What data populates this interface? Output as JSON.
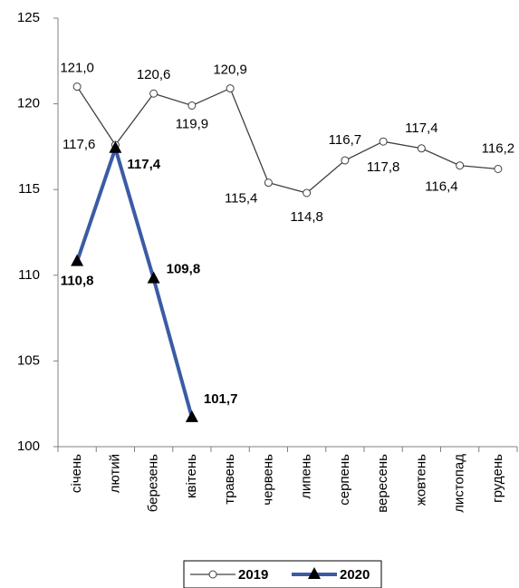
{
  "chart_data": {
    "type": "line",
    "categories": [
      "січень",
      "лютий",
      "березень",
      "квітень",
      "травень",
      "червень",
      "липень",
      "серпень",
      "вересень",
      "жовтень",
      "листопад",
      "грудень"
    ],
    "series": [
      {
        "name": "2019",
        "color": "#404040",
        "marker": "circle",
        "values": [
          121.0,
          117.6,
          120.6,
          119.9,
          120.9,
          115.4,
          114.8,
          116.7,
          117.8,
          117.4,
          116.4,
          116.2
        ],
        "value_labels": [
          "121,0",
          "117,6",
          "120,6",
          "119,9",
          "120,9",
          "115,4",
          "114,8",
          "116,7",
          "117,8",
          "117,4",
          "116,4",
          "116,2"
        ]
      },
      {
        "name": "2020",
        "color": "#3b5ba5",
        "marker": "triangle",
        "values": [
          110.8,
          117.4,
          109.8,
          101.7,
          null,
          null,
          null,
          null,
          null,
          null,
          null,
          null
        ],
        "value_labels": [
          "110,8",
          "117,4",
          "109,8",
          "101,7",
          null,
          null,
          null,
          null,
          null,
          null,
          null,
          null
        ]
      }
    ],
    "ylim": [
      100,
      125
    ],
    "yticks": [
      100,
      105,
      110,
      115,
      120,
      125
    ],
    "grid": false
  }
}
